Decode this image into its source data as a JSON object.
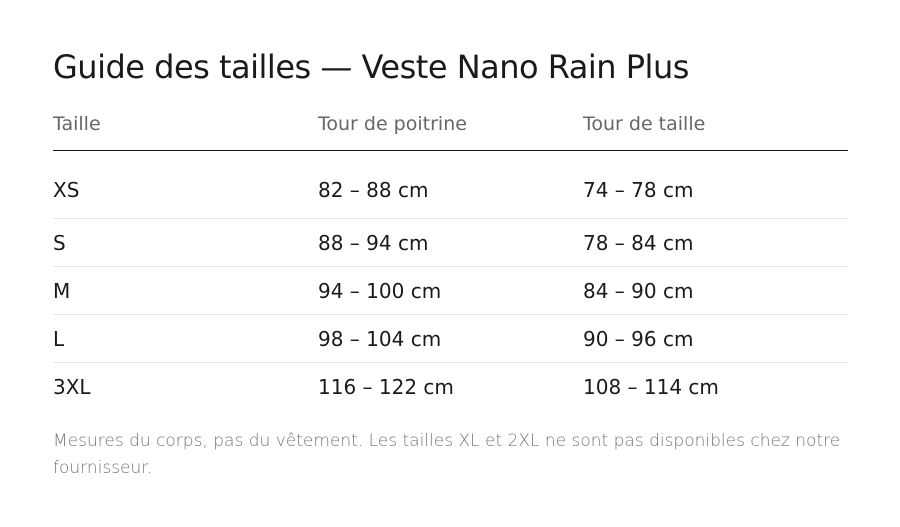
{
  "title": "Guide des tailles — Veste Nano Rain Plus",
  "table": {
    "header": [
      "Taille",
      "Tour de poitrine",
      "Tour de taille"
    ],
    "rows": [
      [
        "XS",
        "82 – 88 cm",
        "74 – 78 cm"
      ],
      [
        "S",
        "88 – 94 cm",
        "78 – 84 cm"
      ],
      [
        "M",
        "94 – 100 cm",
        "84 – 90 cm"
      ],
      [
        "L",
        "98 – 104 cm",
        "90 – 96 cm"
      ],
      [
        "3XL",
        "116 – 122 cm",
        "108 – 114 cm"
      ]
    ]
  },
  "note": "Mesures du corps, pas du vêtement. Les tailles XL et 2XL ne sont pas disponibles chez notre fournisseur."
}
